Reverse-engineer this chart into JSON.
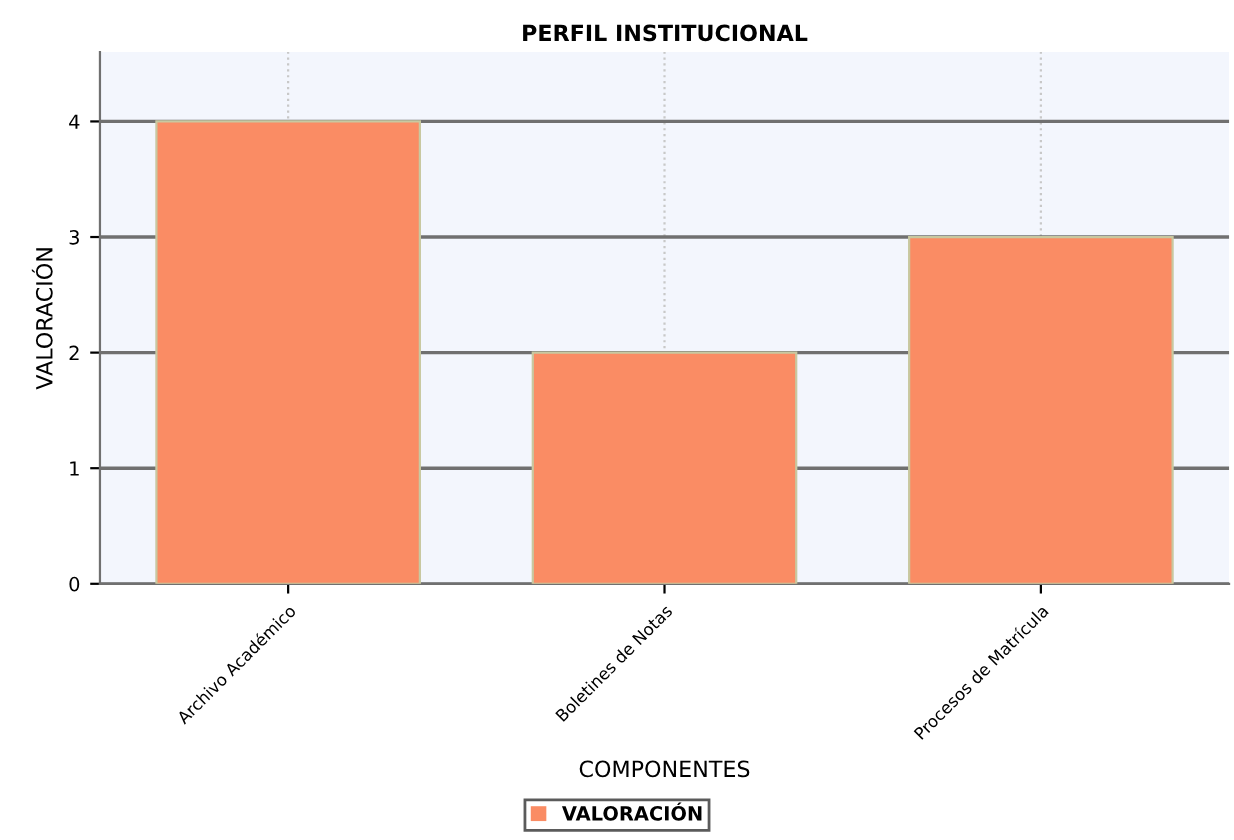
{
  "chart_data": {
    "type": "bar",
    "title": "PERFIL INSTITUCIONAL",
    "xlabel": "COMPONENTES",
    "ylabel": "VALORACIÓN",
    "categories": [
      "Archivo Académico",
      "Boletines de Notas",
      "Procesos de Matrícula"
    ],
    "series": [
      {
        "name": "VALORACIÓN",
        "color": "#fa8c64",
        "values": [
          4,
          2,
          3
        ]
      }
    ],
    "ylim": [
      0,
      4.6
    ],
    "yticks": [
      0,
      1,
      2,
      3,
      4
    ],
    "grid": true,
    "legend": "bottom"
  }
}
